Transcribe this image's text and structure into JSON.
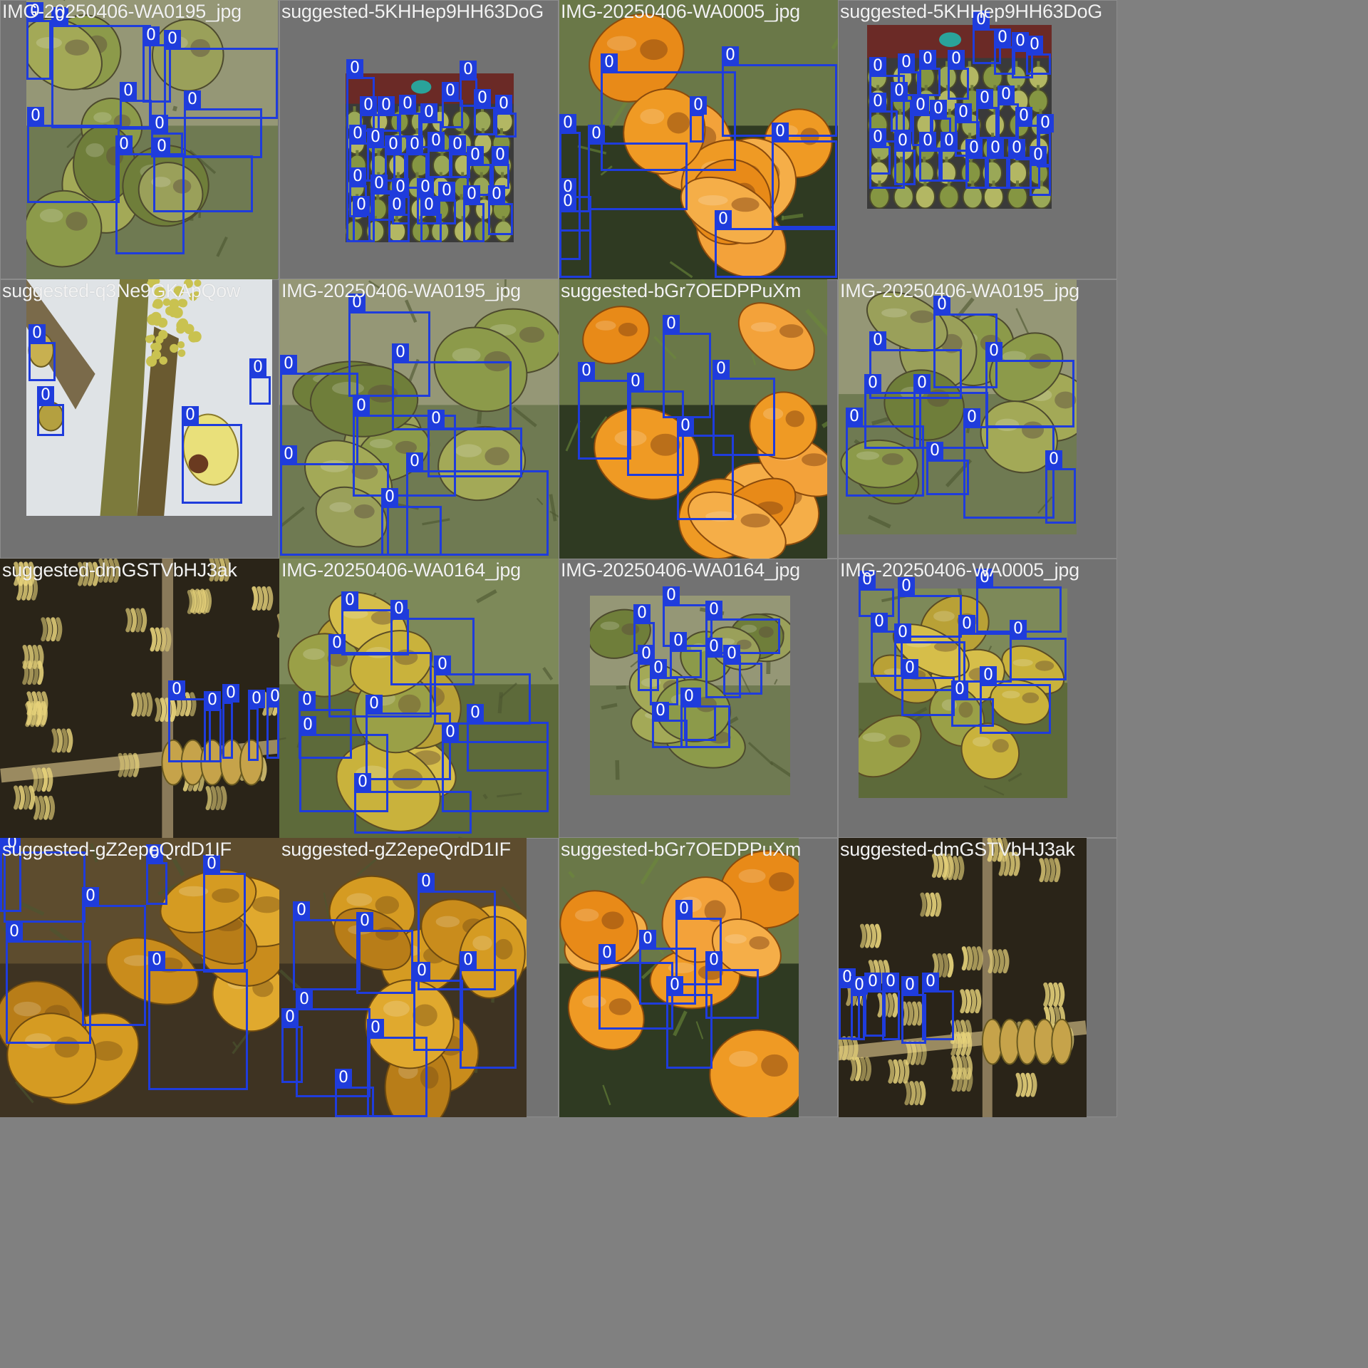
{
  "colors": {
    "canvas": "#808080",
    "box": "#1f3cdc",
    "tag_text": "#ffffff",
    "label_text": "#f2f2f2"
  },
  "class_tag": "0",
  "tiles": [
    {
      "label": "IMG-20250406-WA0195_jpg",
      "scene": "green"
    },
    {
      "label": "suggested-5KHHep9HH63DoG",
      "scene": "stall"
    },
    {
      "label": "IMG-20250406-WA0005_jpg",
      "scene": "orange"
    },
    {
      "label": "suggested-5KHHep9HH63DoG",
      "scene": "stall"
    },
    {
      "label": "suggested-q3Ne9GKApQow",
      "scene": "tree"
    },
    {
      "label": "IMG-20250406-WA0195_jpg",
      "scene": "green"
    },
    {
      "label": "suggested-bGr7OEDPPuXm",
      "scene": "orange"
    },
    {
      "label": "IMG-20250406-WA0195_jpg",
      "scene": "green"
    },
    {
      "label": "suggested-dmGSTVbHJ3ak",
      "scene": "banana"
    },
    {
      "label": "IMG-20250406-WA0164_jpg",
      "scene": "yellow"
    },
    {
      "label": "IMG-20250406-WA0164_jpg",
      "scene": "green"
    },
    {
      "label": "IMG-20250406-WA0005_jpg",
      "scene": "yellow"
    },
    {
      "label": "suggested-gZ2epeQrdD1IF",
      "scene": "golden"
    },
    {
      "label": "suggested-gZ2epeQrdD1IF",
      "scene": "golden"
    },
    {
      "label": "suggested-bGr7OEDPPuXm",
      "scene": "orange"
    },
    {
      "label": "suggested-dmGSTVbHJ3ak",
      "scene": "banana"
    }
  ]
}
